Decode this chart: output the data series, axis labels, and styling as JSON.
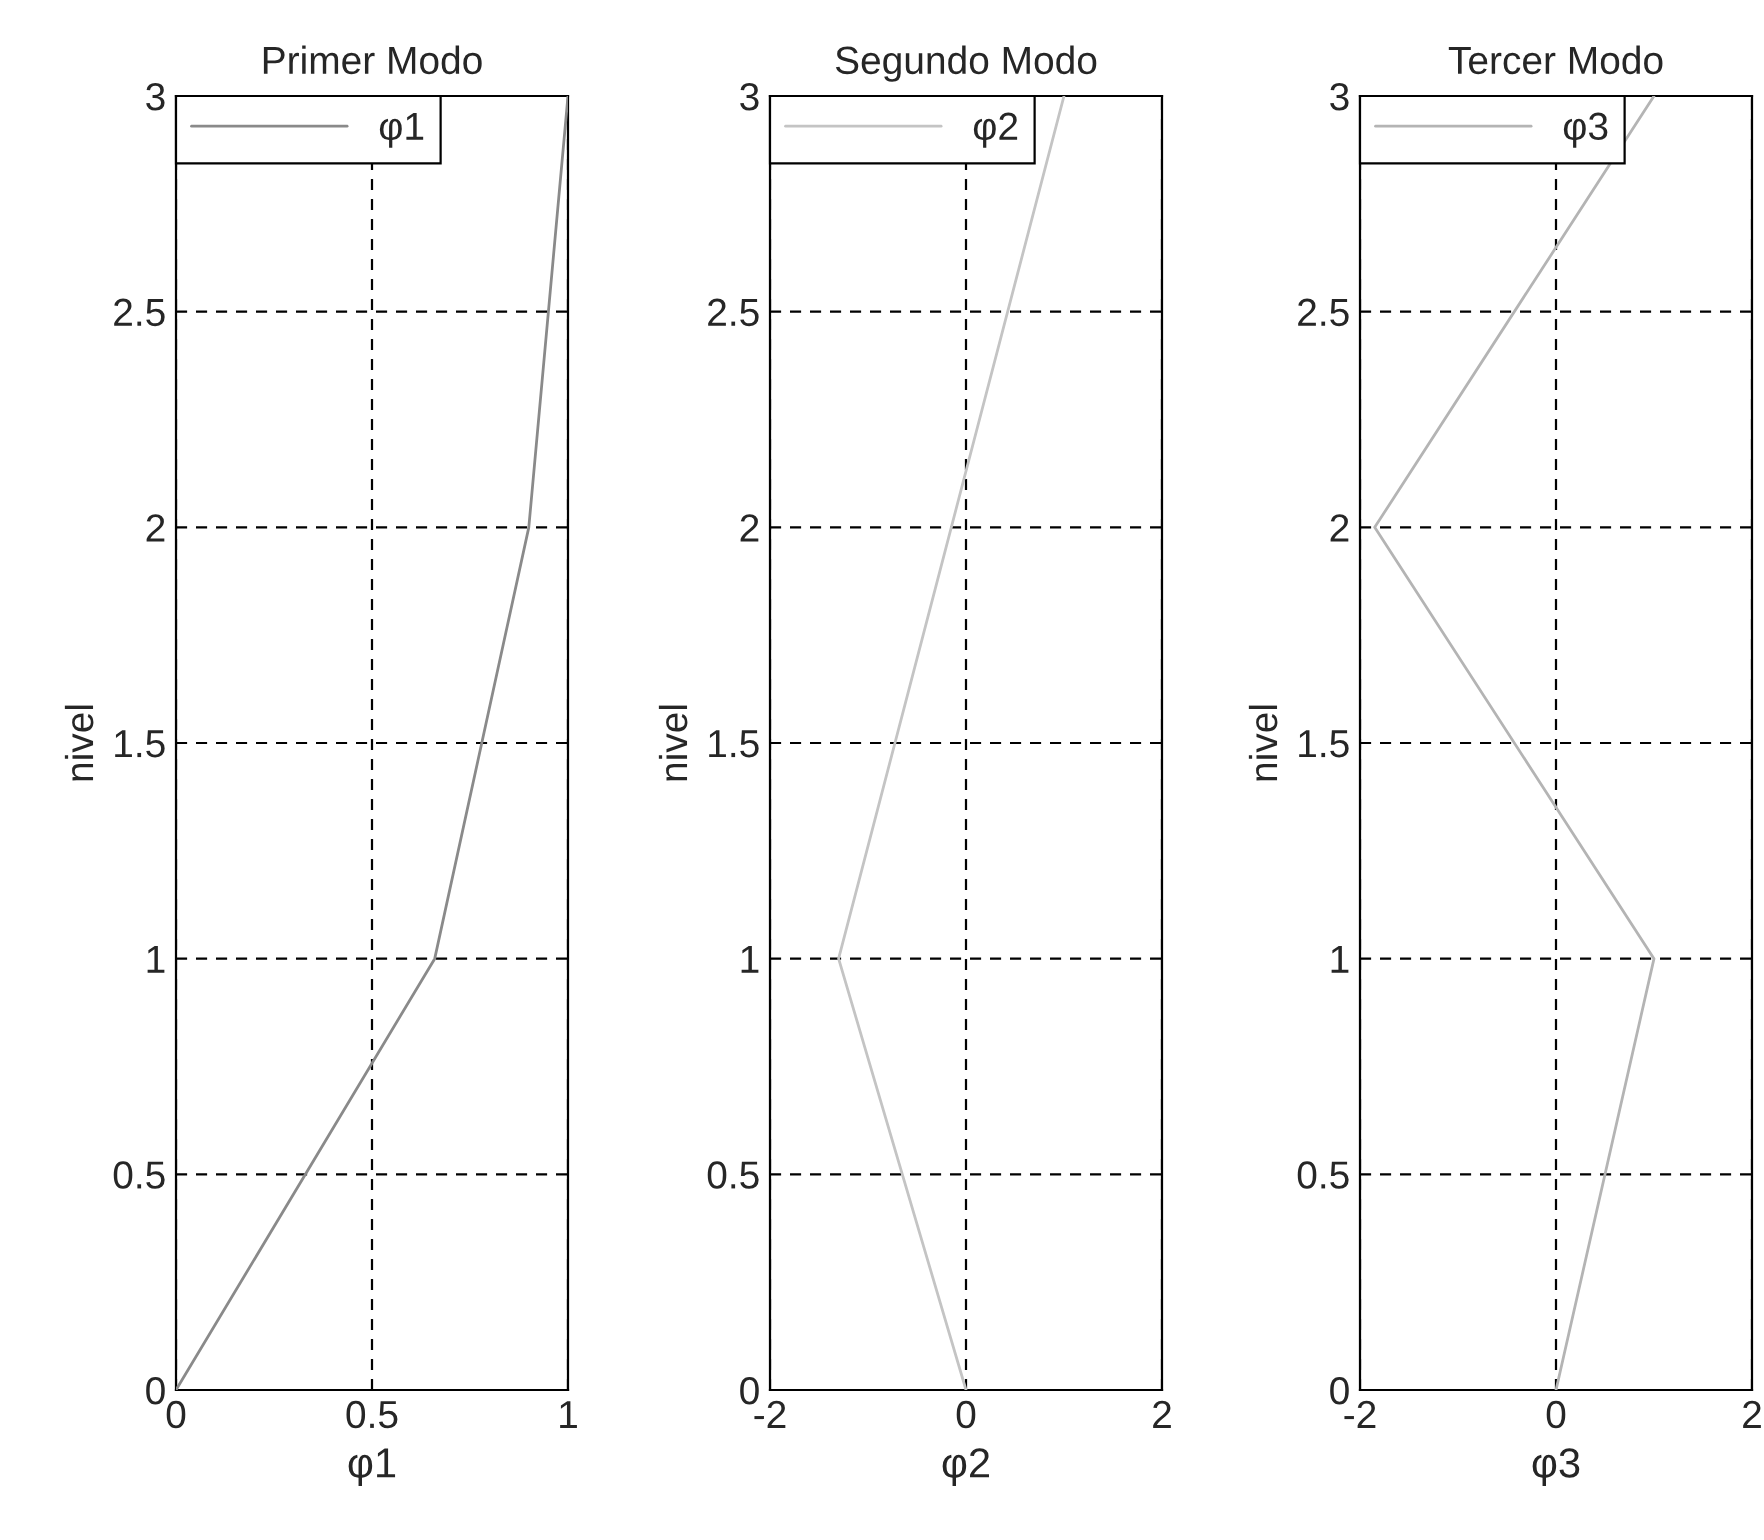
{
  "chart_data": [
    {
      "type": "line",
      "title": "Primer Modo",
      "xlabel": "φ1",
      "ylabel": "nivel",
      "xlim": [
        0,
        1
      ],
      "xticks": [
        0,
        0.5,
        1
      ],
      "ylim": [
        0,
        3
      ],
      "yticks": [
        0,
        0.5,
        1,
        1.5,
        2,
        2.5,
        3
      ],
      "grid": true,
      "legend": "top left",
      "line_style": "solid",
      "series": [
        {
          "name": "φ1",
          "color": "#8a8a8a",
          "x": [
            0,
            0.66,
            0.9,
            1
          ],
          "values": [
            0,
            1,
            2,
            3
          ]
        }
      ]
    },
    {
      "type": "line",
      "title": "Segundo Modo",
      "xlabel": "φ2",
      "ylabel": "nivel",
      "xlim": [
        -2,
        2
      ],
      "xticks": [
        -2,
        0,
        2
      ],
      "ylim": [
        0,
        3
      ],
      "yticks": [
        0,
        0.5,
        1,
        1.5,
        2,
        2.5,
        3
      ],
      "grid": true,
      "legend": "top left",
      "line_style": "solid",
      "series": [
        {
          "name": "φ2",
          "color": "#c4c4c4",
          "x": [
            0,
            -1.3,
            -0.15,
            1
          ],
          "values": [
            0,
            1,
            2,
            3
          ]
        }
      ]
    },
    {
      "type": "line",
      "title": "Tercer Modo",
      "xlabel": "φ3",
      "ylabel": "nivel",
      "xlim": [
        -2,
        2
      ],
      "xticks": [
        -2,
        0,
        2
      ],
      "ylim": [
        0,
        3
      ],
      "yticks": [
        0,
        0.5,
        1,
        1.5,
        2,
        2.5,
        3
      ],
      "grid": true,
      "legend": "top left",
      "line_style": "solid",
      "series": [
        {
          "name": "φ3",
          "color": "#b4b4b4",
          "x": [
            0,
            1,
            -1.85,
            1
          ],
          "values": [
            0,
            1,
            2,
            3
          ]
        }
      ]
    }
  ]
}
